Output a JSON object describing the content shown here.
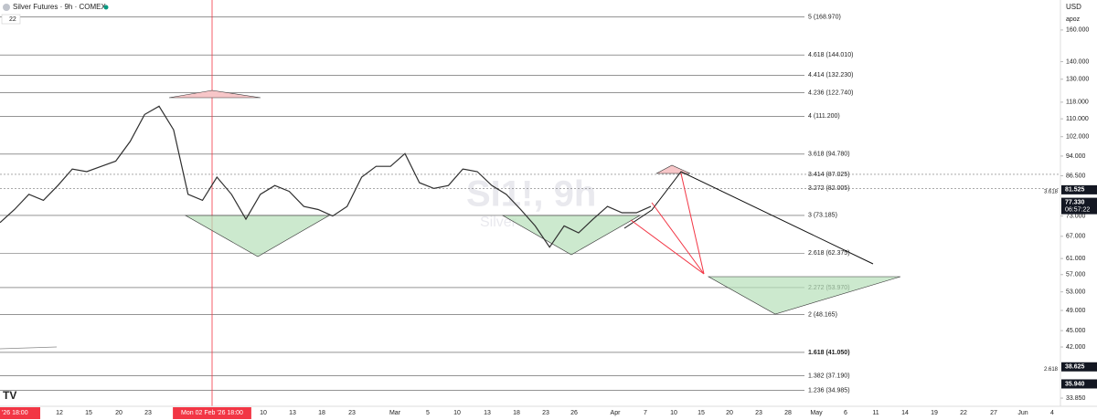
{
  "header": {
    "title": "Silver Futures · 9h · COMEX",
    "interval_count": "22",
    "currency": "USD",
    "scale_mode": "apoz"
  },
  "watermark": {
    "symbol": "SI1!, 9h",
    "name": "Silver"
  },
  "chart_data": {
    "type": "line",
    "log_scale": true,
    "ylim": [
      32.7,
      181.6
    ],
    "yticks": [
      {
        "value": 160,
        "label": "160.000"
      },
      {
        "value": 140,
        "label": "140.000"
      },
      {
        "value": 130,
        "label": "130.000"
      },
      {
        "value": 118,
        "label": "118.000"
      },
      {
        "value": 110,
        "label": "110.000"
      },
      {
        "value": 102,
        "label": "102.000"
      },
      {
        "value": 94,
        "label": "94.000"
      },
      {
        "value": 86.5,
        "label": "86.500"
      },
      {
        "value": 73,
        "label": "73.000"
      },
      {
        "value": 67,
        "label": "67.000"
      },
      {
        "value": 61,
        "label": "61.000"
      },
      {
        "value": 57,
        "label": "57.000"
      },
      {
        "value": 53,
        "label": "53.000"
      },
      {
        "value": 49,
        "label": "49.000"
      },
      {
        "value": 45,
        "label": "45.000"
      },
      {
        "value": 42,
        "label": "42.000"
      },
      {
        "value": 33.85,
        "label": "33.850"
      }
    ],
    "series": [
      {
        "color": "#2f2f2f",
        "values": [
          71,
          75,
          80,
          78,
          83,
          89,
          88,
          90,
          92,
          100,
          112,
          116,
          105,
          80,
          78,
          86,
          80,
          72,
          80,
          83,
          81,
          76,
          75,
          73,
          76,
          86,
          90,
          90,
          95,
          84,
          82,
          83,
          89,
          88,
          83,
          80,
          75,
          70,
          64,
          70,
          68,
          72,
          76,
          74,
          74,
          76
        ]
      }
    ],
    "fib_levels": [
      {
        "value": 168.97,
        "label": "5 (168.970)"
      },
      {
        "value": 144.01,
        "label": "4.618 (144.010)"
      },
      {
        "value": 132.23,
        "label": "4.414 (132.230)"
      },
      {
        "value": 122.74,
        "label": "4.236 (122.740)"
      },
      {
        "value": 111.2,
        "label": "4 (111.200)"
      },
      {
        "value": 94.78,
        "label": "3.618 (94.780)"
      },
      {
        "value": 87.025,
        "label": "3.414 (87.025)"
      },
      {
        "value": 82.005,
        "label": "3.272 (82.005)"
      },
      {
        "value": 73.185,
        "label": "3 (73.185)"
      },
      {
        "value": 62.375,
        "label": "2.618 (62.375)"
      },
      {
        "value": 53.97,
        "label": "2.272 (53.970)"
      },
      {
        "value": 48.165,
        "label": "2 (48.165)"
      },
      {
        "value": 41.05,
        "label": "1.618 (41.050)"
      },
      {
        "value": 37.19,
        "label": "1.382 (37.190)"
      },
      {
        "value": 34.985,
        "label": "1.236 (34.985)"
      }
    ],
    "price_tags": [
      {
        "value": 81.525,
        "label": "81.525"
      },
      {
        "value": 77.33,
        "label": "77.330",
        "countdown": "06:57:22"
      },
      {
        "value": 38.625,
        "label": "38.625"
      },
      {
        "value": 35.94,
        "label": "35.940"
      }
    ],
    "axis_notes": [
      {
        "value": 80.9,
        "label": "3.618"
      },
      {
        "value": 38.2,
        "label": "2.618"
      }
    ],
    "x_labels": [
      {
        "label": "'26  18:00",
        "highlight": true
      },
      {
        "label": "12"
      },
      {
        "label": "15"
      },
      {
        "label": "20"
      },
      {
        "label": "23"
      },
      {
        "label": "Mon 02 Feb '26  18:00",
        "highlight": true
      },
      {
        "label": "10"
      },
      {
        "label": "13"
      },
      {
        "label": "18"
      },
      {
        "label": "23"
      },
      {
        "label": "Mar"
      },
      {
        "label": "5"
      },
      {
        "label": "10"
      },
      {
        "label": "13"
      },
      {
        "label": "18"
      },
      {
        "label": "23"
      },
      {
        "label": "26"
      },
      {
        "label": "Apr"
      },
      {
        "label": "7"
      },
      {
        "label": "10"
      },
      {
        "label": "15"
      },
      {
        "label": "20"
      },
      {
        "label": "23"
      },
      {
        "label": "28"
      },
      {
        "label": "May"
      },
      {
        "label": "6"
      },
      {
        "label": "11"
      },
      {
        "label": "14"
      },
      {
        "label": "19"
      },
      {
        "label": "22"
      },
      {
        "label": "27"
      },
      {
        "label": "Jun"
      },
      {
        "label": "4"
      }
    ]
  }
}
